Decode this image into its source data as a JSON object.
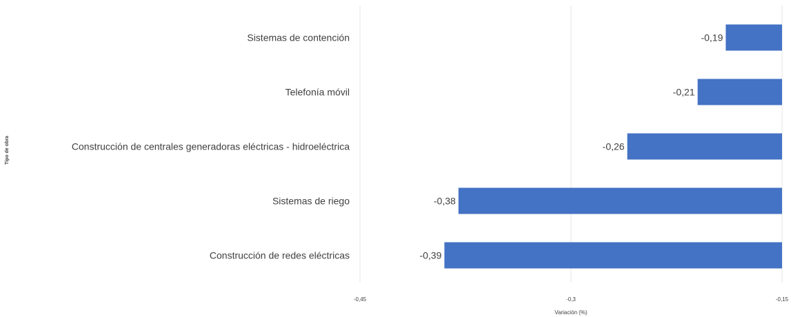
{
  "chart_data": {
    "type": "bar",
    "orientation": "horizontal",
    "categories": [
      "Sistemas de contención",
      "Telefonía móvil",
      "Construcción de centrales generadoras eléctricas - hidroeléctrica",
      "Sistemas de riego",
      "Construcción de redes eléctricas"
    ],
    "values": [
      -0.19,
      -0.21,
      -0.26,
      -0.38,
      -0.39
    ],
    "value_labels": [
      "-0,19",
      "-0,21",
      "-0,26",
      "-0,38",
      "-0,39"
    ],
    "xlabel": "Variación (%)",
    "ylabel": "Tipo de obra",
    "xlim": [
      -0.45,
      -0.15
    ],
    "xticks": [
      -0.45,
      -0.3,
      -0.15
    ],
    "xtick_labels": [
      "-0,45",
      "-0,3",
      "-0,15"
    ],
    "grid": true,
    "bar_color": "#4472C4",
    "grid_color": "#e6e6e6"
  }
}
